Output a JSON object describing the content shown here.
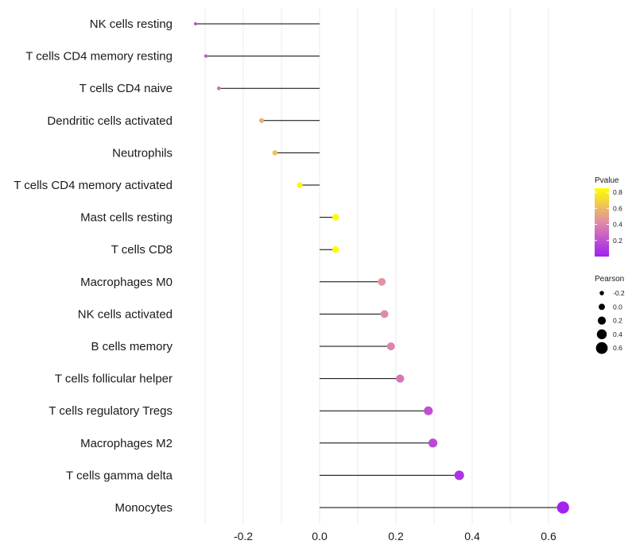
{
  "chart_data": {
    "type": "lollipop",
    "xlabel": "",
    "ylabel": "",
    "xlim": [
      -0.335,
      0.66
    ],
    "x_ticks": [
      -0.2,
      0.0,
      0.2,
      0.4,
      0.6
    ],
    "x_tick_labels": [
      "-0.2",
      "0.0",
      "0.2",
      "0.4",
      "0.6"
    ],
    "x_minor_ticks": [
      -0.3,
      -0.1,
      0.1,
      0.3,
      0.5
    ],
    "categories": [
      "NK cells resting",
      "T cells CD4 memory resting",
      "T cells CD4 naive",
      "Dendritic cells activated",
      "Neutrophils",
      "T cells CD4 memory activated",
      "Mast cells resting",
      "T cells CD8",
      "Macrophages M0",
      "NK cells activated",
      "B cells memory",
      "T cells follicular helper",
      "T cells regulatory  Tregs ",
      "Macrophages M2",
      "T cells gamma delta",
      "Monocytes"
    ],
    "pearson": [
      -0.325,
      -0.298,
      -0.264,
      -0.152,
      -0.117,
      -0.052,
      0.042,
      0.042,
      0.163,
      0.17,
      0.187,
      0.211,
      0.285,
      0.297,
      0.366,
      0.638
    ],
    "pvalue": [
      0.2,
      0.25,
      0.33,
      0.55,
      0.62,
      0.82,
      0.83,
      0.84,
      0.45,
      0.43,
      0.4,
      0.35,
      0.2,
      0.17,
      0.08,
      0.01
    ],
    "legend": {
      "color": {
        "title": "Pvalue",
        "ticks": [
          0.2,
          0.4,
          0.6,
          0.8
        ],
        "tick_labels": [
          "0.2",
          "0.4",
          "0.6",
          "0.8"
        ],
        "range": [
          0.0,
          0.85
        ],
        "low_color": "#a020f0",
        "mid_color": "#e08aa8",
        "high_color": "#ffff00"
      },
      "size": {
        "title": "Pearson",
        "values": [
          -0.2,
          0.0,
          0.2,
          0.4,
          0.6
        ],
        "labels": [
          "-0.2",
          "0.0",
          "0.2",
          "0.4",
          "0.6"
        ]
      },
      "position": "right"
    },
    "stem_color": "#000000"
  }
}
